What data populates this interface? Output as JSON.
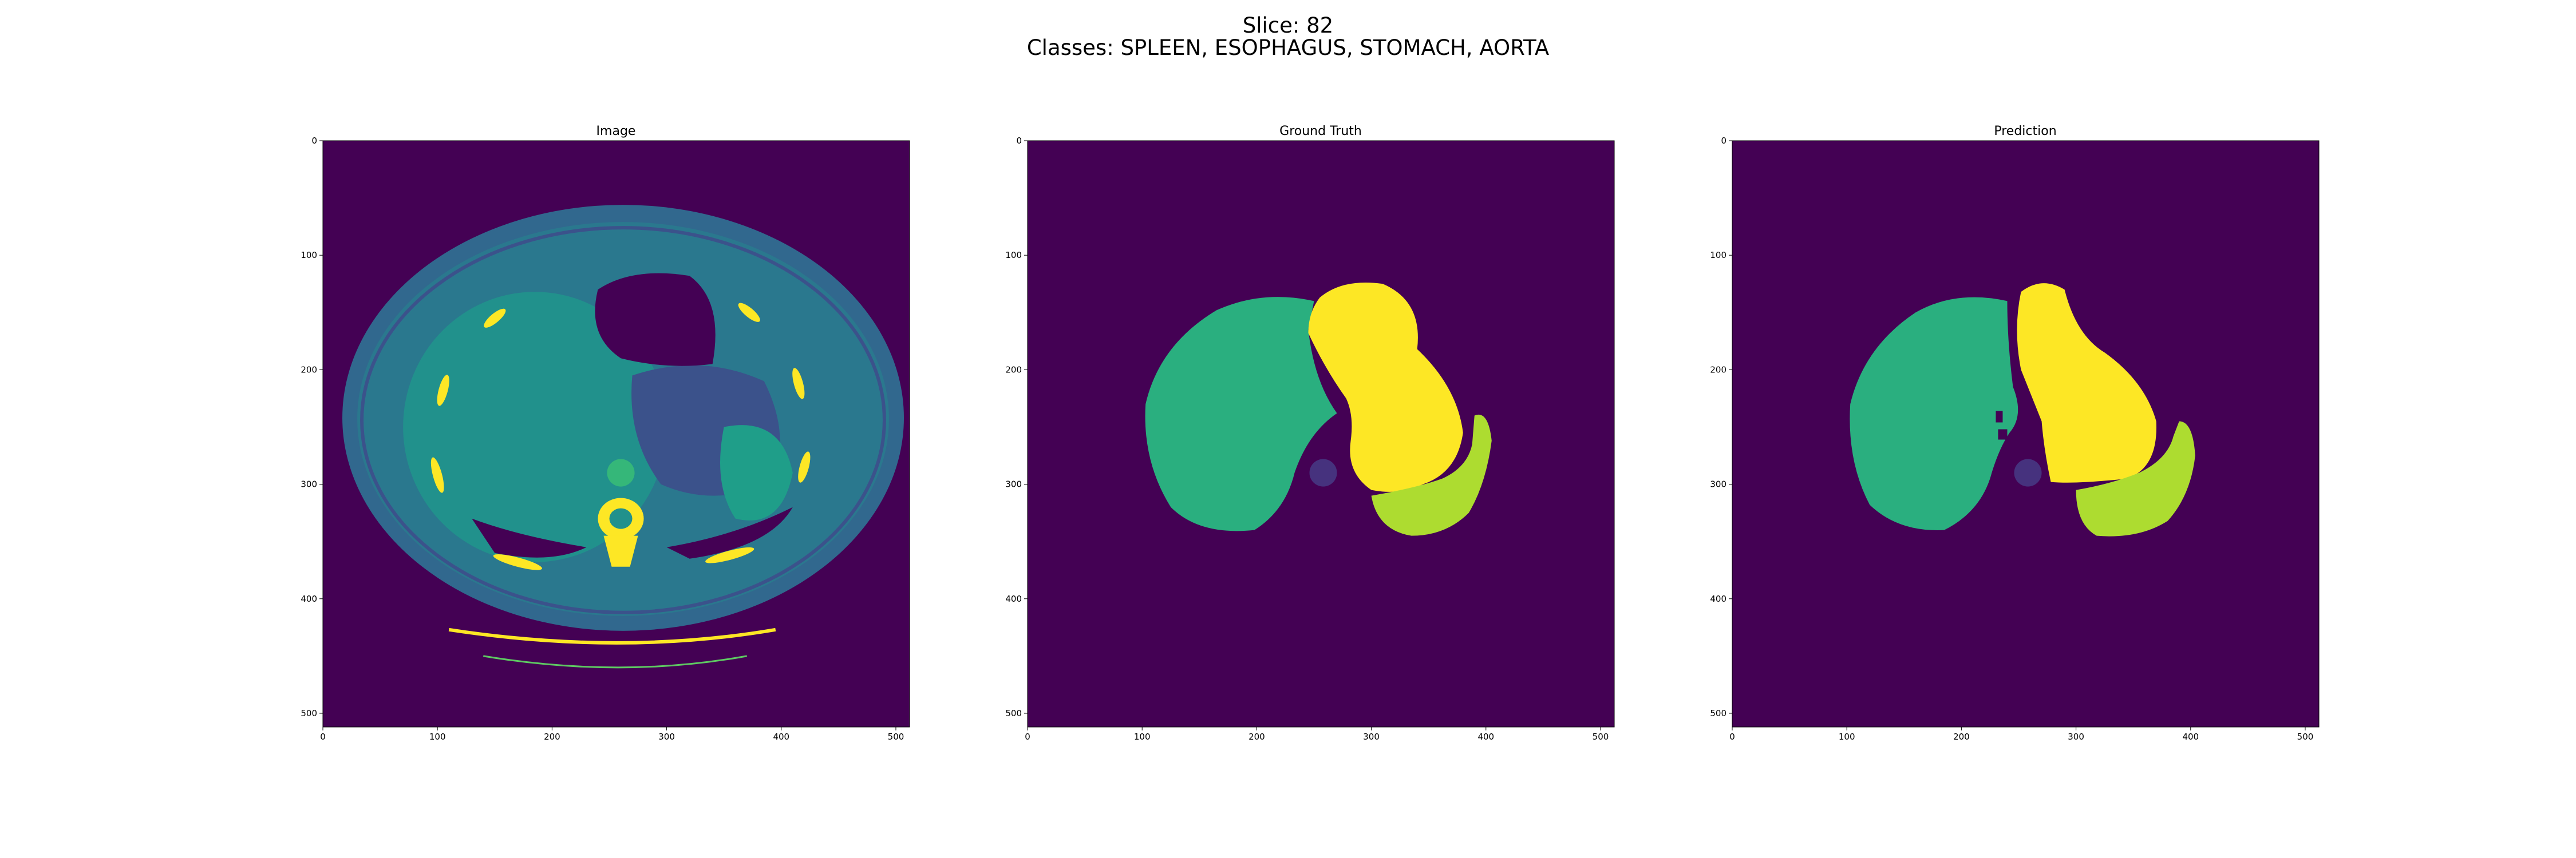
{
  "figure": {
    "title_line1": "Slice: 82",
    "title_line2": "Classes: SPLEEN, ESOPHAGUS, STOMACH, AORTA"
  },
  "panels": [
    {
      "title": "Image",
      "kind": "ct-scan",
      "xticks": [
        "0",
        "100",
        "200",
        "300",
        "400",
        "500"
      ],
      "yticks": [
        "0",
        "100",
        "200",
        "300",
        "400",
        "500"
      ]
    },
    {
      "title": "Ground Truth",
      "kind": "segmentation-mask",
      "xticks": [
        "0",
        "100",
        "200",
        "300",
        "400",
        "500"
      ],
      "yticks": [
        "0",
        "100",
        "200",
        "300",
        "400",
        "500"
      ]
    },
    {
      "title": "Prediction",
      "kind": "segmentation-mask",
      "xticks": [
        "0",
        "100",
        "200",
        "300",
        "400",
        "500"
      ],
      "yticks": [
        "0",
        "100",
        "200",
        "300",
        "400",
        "500"
      ]
    }
  ],
  "colors": {
    "background": "#440154",
    "class_teal": "#2aaf7f",
    "class_yellow": "#fde725",
    "class_lime": "#addc30",
    "class_purple": "#46327e",
    "ct_tissue": "#2a788e",
    "ct_soft": "#21918c",
    "ct_dark": "#3b528b"
  }
}
